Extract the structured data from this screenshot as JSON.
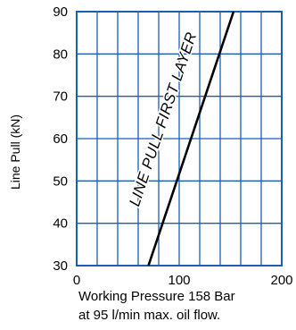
{
  "chart_data": {
    "type": "line",
    "title": "",
    "xlabel_line1": "Working Pressure 158 Bar",
    "xlabel_line2": "at 95 l/min max. oil flow.",
    "ylabel": "Line Pull (kN)",
    "xlim": [
      0,
      200
    ],
    "ylim": [
      30,
      90
    ],
    "x_ticks": [
      0,
      100,
      200
    ],
    "y_ticks": [
      30,
      40,
      50,
      60,
      70,
      80,
      90
    ],
    "grid": true,
    "grid_color": "#1b5fb4",
    "line_color": "#000000",
    "series": [
      {
        "name": "LINE PULL FIRST LAYER",
        "x": [
          70,
          153
        ],
        "y": [
          30,
          90
        ]
      }
    ]
  }
}
